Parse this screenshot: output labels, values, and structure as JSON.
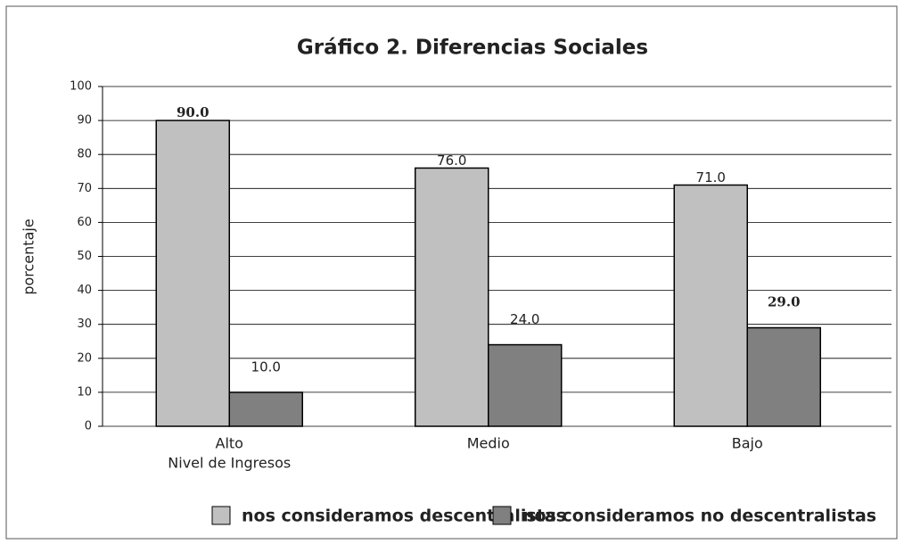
{
  "chart_data": {
    "type": "bar",
    "title": "Gráfico 2. Diferencias Sociales",
    "ylabel": "porcentaje",
    "xlabel": "Nivel de Ingresos",
    "categories": [
      "Alto",
      "Medio",
      "Bajo"
    ],
    "series": [
      {
        "name": "nos consideramos descentralistas",
        "color": "#c0c0c0",
        "values": [
          90,
          76,
          71
        ],
        "value_labels": [
          "90.0",
          "76.0",
          "71.0"
        ],
        "label_bold": [
          true,
          false,
          false
        ]
      },
      {
        "name": "nos consideramos no descentralistas",
        "color": "#808080",
        "values": [
          10,
          24,
          29
        ],
        "value_labels": [
          "10.0",
          "24.0",
          "29.0"
        ],
        "label_bold": [
          false,
          false,
          true
        ]
      }
    ],
    "ylim": [
      0,
      100
    ],
    "yticks": [
      0,
      10,
      20,
      30,
      40,
      50,
      60,
      70,
      80,
      90,
      100
    ],
    "grid": true,
    "legend": "bottom"
  }
}
